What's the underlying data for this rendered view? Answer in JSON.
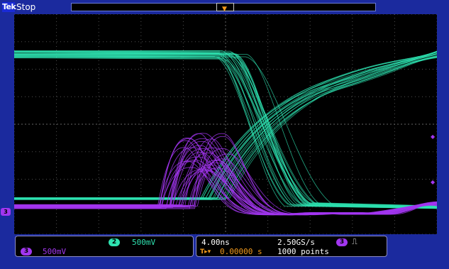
{
  "status": {
    "brand": "Tek",
    "run_state": "Stop"
  },
  "channels": [
    {
      "id": "2",
      "scale": "500mV",
      "color": "#2ee2b0"
    },
    {
      "id": "3",
      "scale": "500mV",
      "color": "#a236f0"
    }
  ],
  "horizontal": {
    "time_per_div": "4.00ns",
    "sample_rate": "2.50GS/s",
    "trigger_position": "0.00000 s",
    "record_length": "1000 points"
  },
  "trigger": {
    "source": "3",
    "slope_icon": "rising-edge-icon",
    "marker_label": "T"
  },
  "colors": {
    "frame": "#1b2a9e",
    "screen": "#000000",
    "grid": "#505050",
    "trigger": "#f39a1c"
  }
}
